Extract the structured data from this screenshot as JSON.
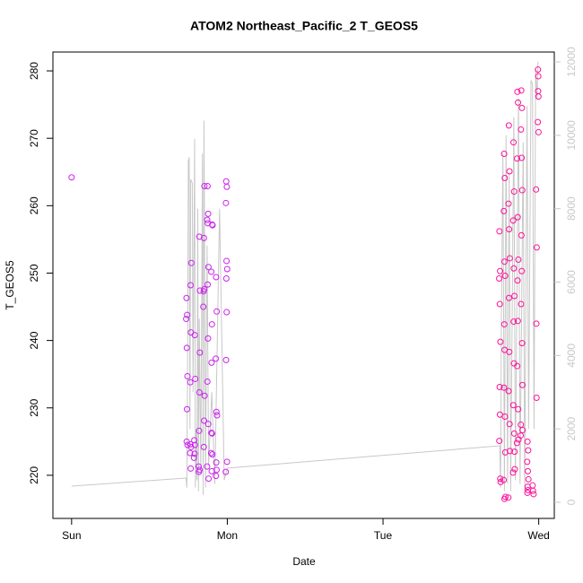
{
  "chart_data": {
    "type": "scatter",
    "title": "ATOM2 Northeast_Pacific_2 T_GEOS5",
    "x_label": "Date",
    "y_label": "T_GEOS5",
    "xlim": [
      -0.12,
      3.1
    ],
    "xticks": [
      {
        "value": 0,
        "label": "Sun"
      },
      {
        "value": 1,
        "label": "Mon"
      },
      {
        "value": 2,
        "label": "Tue"
      },
      {
        "value": 3,
        "label": "Wed"
      }
    ],
    "ylim": [
      213.6,
      282.8
    ],
    "yticks": [
      220,
      230,
      240,
      250,
      260,
      270,
      280
    ],
    "y2lim": [
      -440,
      12269
    ],
    "y2ticks": [
      0,
      2000,
      4000,
      6000,
      8000,
      10000,
      12000
    ],
    "series": [
      {
        "mode": "line",
        "axis": "y2",
        "color": "#c8c8c8",
        "x": [
          0,
          0.735,
          0.74,
          0.745,
          0.75,
          0.755,
          0.76,
          0.765,
          0.775,
          0.78,
          0.79,
          0.795,
          0.8,
          0.805,
          0.81,
          0.815,
          0.82,
          0.83,
          0.84,
          0.845,
          0.85,
          0.855,
          0.86,
          0.87,
          0.88,
          0.9,
          0.92,
          0.95,
          0.98,
          1.0,
          2.75,
          2.755,
          2.76,
          2.77,
          2.78,
          2.79,
          2.8,
          2.81,
          2.82,
          2.84,
          2.85,
          2.87,
          2.88,
          2.9,
          2.91,
          2.925,
          2.935,
          2.95,
          2.96,
          2.97,
          2.98,
          2.99,
          2.995
        ],
        "values": [
          440,
          660,
          400,
          4000,
          9300,
          9400,
          2000,
          8800,
          8700,
          3000,
          9900,
          400,
          2000,
          600,
          8000,
          300,
          5000,
          800,
          9500,
          200,
          10400,
          6000,
          400,
          7000,
          1000,
          3000,
          500,
          8000,
          600,
          930,
          1540,
          400,
          5000,
          9500,
          300,
          10000,
          500,
          9000,
          300,
          10500,
          600,
          11000,
          500,
          9800,
          300,
          10800,
          2000,
          11500,
          11400,
          2000,
          11800,
          11000,
          12000
        ]
      },
      {
        "mode": "points",
        "color": "#cc22ee",
        "x": [
          0,
          0.738,
          0.742,
          0.736,
          0.74,
          0.744,
          0.741,
          0.739,
          0.745,
          0.763,
          0.767,
          0.761,
          0.765,
          0.769,
          0.764,
          0.766,
          0.762,
          0.788,
          0.792,
          0.786,
          0.79,
          0.794,
          0.791,
          0.818,
          0.822,
          0.816,
          0.82,
          0.824,
          0.821,
          0.819,
          0.823,
          0.848,
          0.852,
          0.846,
          0.85,
          0.854,
          0.851,
          0.849,
          0.853,
          0.873,
          0.877,
          0.871,
          0.875,
          0.879,
          0.874,
          0.876,
          0.872,
          0.878,
          0.87,
          0.88,
          0.898,
          0.902,
          0.896,
          0.9,
          0.904,
          0.899,
          0.901,
          0.897,
          0.903,
          0.905,
          0.928,
          0.932,
          0.926,
          0.93,
          0.934,
          0.929,
          0.931,
          0.927,
          0.993,
          0.997,
          0.991,
          0.995,
          0.999,
          0.994,
          0.996,
          0.992,
          0.998,
          0.99
        ],
        "values": [
          264.2,
          246.3,
          243.8,
          243.2,
          238.9,
          234.7,
          229.8,
          225,
          224.5,
          224.6,
          224.2,
          223.3,
          221,
          251.5,
          248.2,
          241.2,
          233.8,
          225.2,
          224.5,
          222.6,
          223.2,
          234.3,
          240.8,
          220.5,
          220.8,
          221.3,
          255.4,
          247.4,
          232.3,
          226.6,
          238.2,
          247.3,
          247.6,
          245,
          255.2,
          231.8,
          228.1,
          224.2,
          262.9,
          262.9,
          258.8,
          257.9,
          257.4,
          250.9,
          248.3,
          240.3,
          233.9,
          227.6,
          221.3,
          219.5,
          226.3,
          226.2,
          223.3,
          220.6,
          223.1,
          236.7,
          242.4,
          250.2,
          257.2,
          257.1,
          249.4,
          244.3,
          237.3,
          229.4,
          228.9,
          221.9,
          220.8,
          219.9,
          263.6,
          262.8,
          260.4,
          251.8,
          250.6,
          249.2,
          244.2,
          237.1,
          222,
          220.5
        ]
      },
      {
        "mode": "points",
        "color": "#ff1099",
        "x": [
          2.748,
          2.752,
          2.746,
          2.75,
          2.754,
          2.749,
          2.751,
          2.747,
          2.753,
          2.755,
          2.778,
          2.782,
          2.776,
          2.78,
          2.784,
          2.779,
          2.781,
          2.777,
          2.783,
          2.785,
          2.775,
          2.786,
          2.78,
          2.808,
          2.812,
          2.806,
          2.81,
          2.814,
          2.809,
          2.811,
          2.807,
          2.813,
          2.815,
          2.805,
          2.838,
          2.842,
          2.836,
          2.84,
          2.844,
          2.839,
          2.841,
          2.837,
          2.843,
          2.845,
          2.835,
          2.846,
          2.863,
          2.867,
          2.861,
          2.865,
          2.869,
          2.864,
          2.866,
          2.862,
          2.868,
          2.87,
          2.86,
          2.888,
          2.892,
          2.886,
          2.89,
          2.894,
          2.889,
          2.891,
          2.887,
          2.893,
          2.895,
          2.885,
          2.896,
          2.884,
          2.928,
          2.932,
          2.926,
          2.93,
          2.934,
          2.929,
          2.931,
          2.927,
          2.963,
          2.967,
          2.961,
          2.983,
          2.987,
          2.985,
          2.986,
          2.995,
          2.997,
          2.996,
          2.998,
          2.994,
          2.999
        ],
        "values": [
          256.2,
          250.3,
          249.2,
          245.4,
          239.8,
          233.1,
          229,
          225.1,
          219.5,
          219,
          267.7,
          264.1,
          259.2,
          251.7,
          249.6,
          242.4,
          238.6,
          233,
          228.7,
          223.4,
          219.3,
          216.8,
          216.5,
          271.9,
          265.1,
          260.3,
          256.5,
          252.2,
          246.3,
          238.3,
          232.5,
          227.6,
          223.6,
          216.7,
          269.4,
          262.1,
          257.8,
          250.7,
          246.6,
          242.8,
          236.6,
          230.4,
          226.2,
          223.5,
          220.4,
          220.9,
          276.9,
          275.3,
          267,
          258.3,
          252,
          248.9,
          242.9,
          236.2,
          229.8,
          225.3,
          224.8,
          277.1,
          274.5,
          271.3,
          267.1,
          262.3,
          255.6,
          250.3,
          245.4,
          239.6,
          233.4,
          227.5,
          226.7,
          225.9,
          225,
          223.7,
          222,
          220.6,
          219.4,
          218.3,
          217.8,
          217.4,
          217.7,
          217.2,
          218.5,
          262.4,
          253.8,
          242.5,
          231.5,
          280.2,
          279.2,
          277,
          276.2,
          272.4,
          270.9
        ]
      }
    ]
  }
}
